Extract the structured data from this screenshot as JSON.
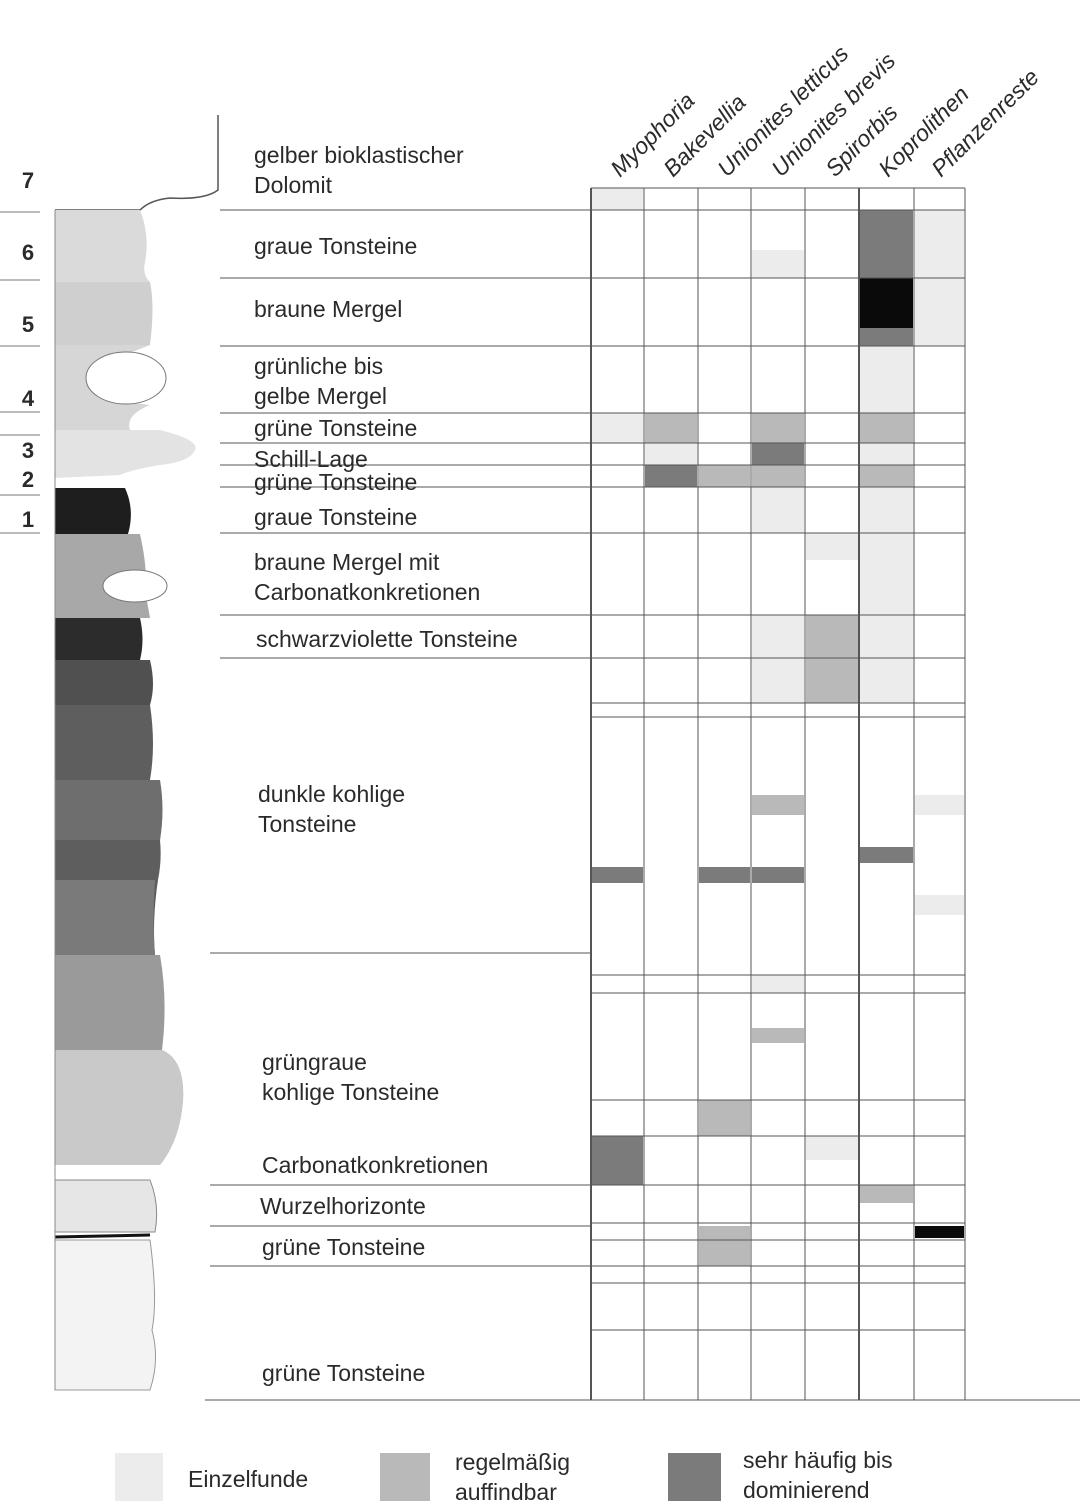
{
  "units": [
    "7",
    "6",
    "5",
    "4",
    "3",
    "2",
    "1"
  ],
  "layers": [
    {
      "lines": [
        "gelber bioklastischer",
        "Dolomit"
      ]
    },
    {
      "lines": [
        "graue Tonsteine"
      ]
    },
    {
      "lines": [
        "braune Mergel"
      ]
    },
    {
      "lines": [
        "grünliche bis",
        "gelbe Mergel"
      ]
    },
    {
      "lines": [
        "grüne Tonsteine"
      ]
    },
    {
      "lines": [
        "Schill-Lage"
      ]
    },
    {
      "lines": [
        "grüne Tonsteine"
      ]
    },
    {
      "lines": [
        "graue Tonsteine"
      ]
    },
    {
      "lines": [
        "braune Mergel mit",
        "Carbonatkonkretionen"
      ]
    },
    {
      "lines": [
        "schwarzviolette Tonsteine"
      ]
    },
    {
      "lines": [
        "dunkle kohlige",
        "Tonsteine"
      ]
    },
    {
      "lines": [
        "grüngraue",
        "kohlige Tonsteine"
      ]
    },
    {
      "lines": [
        "Carbonatkonkretionen"
      ]
    },
    {
      "lines": [
        "Wurzelhorizonte"
      ]
    },
    {
      "lines": [
        "grüne Tonsteine"
      ]
    },
    {
      "lines": [
        "grüne Tonsteine"
      ]
    }
  ],
  "taxa": [
    "Myophoria",
    "Bakevellia",
    "Unionites letticus",
    "Unionites brevis",
    "Spirorbis",
    "Koprolithen",
    "Pflanzenreste"
  ],
  "abundance_levels": {
    "1": {
      "label_lines": [
        "Einzelfunde"
      ],
      "color": "#ececec"
    },
    "2": {
      "label_lines": [
        "regelmäßig",
        "auffindbar"
      ],
      "color": "#b9b9b9"
    },
    "3": {
      "label_lines": [
        "sehr häufig bis",
        "dominierend"
      ],
      "color": "#7b7b7b"
    },
    "4": {
      "color": "#0a0a0a"
    }
  }
}
